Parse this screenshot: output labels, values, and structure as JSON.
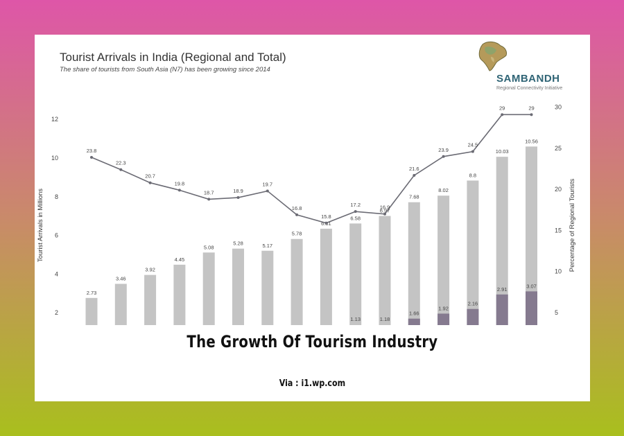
{
  "chart_data": {
    "type": "bar",
    "title": "Tourist Arrivals in India (Regional and Total)",
    "subtitle": "The share of tourists from South Asia (N7) has been growing since 2014",
    "ylabel": "Tourist Arrivals in Millions",
    "y2label": "Percentage of Regional Tourists",
    "ylim": [
      0,
      13
    ],
    "y2lim": [
      0,
      32
    ],
    "yticks": [
      "2",
      "4",
      "6",
      "8",
      "10",
      "12"
    ],
    "y2ticks": [
      "5",
      "10",
      "15",
      "20",
      "25",
      "30"
    ],
    "series": [
      {
        "name": "Total",
        "type": "bar",
        "color": "#c4c4c4",
        "values": [
          2.73,
          3.46,
          3.92,
          4.45,
          5.08,
          5.28,
          5.17,
          5.78,
          6.31,
          6.58,
          6.97,
          7.68,
          8.02,
          8.8,
          10.03,
          10.56
        ],
        "labels": [
          "2.73",
          "3.46",
          "3.92",
          "4.45",
          "5.08",
          "5.28",
          "5.17",
          "5.78",
          "6.31",
          "6.58",
          "6.97",
          "7.68",
          "8.02",
          "8.8",
          "10.03",
          "10.56"
        ]
      },
      {
        "name": "Regional",
        "type": "bar",
        "color": "#857a8f",
        "values": [
          0.6,
          0.65,
          0.72,
          0.8,
          0.95,
          1.0,
          1.02,
          0.97,
          1.0,
          1.13,
          1.18,
          1.66,
          1.92,
          2.16,
          2.91,
          3.07
        ],
        "labels": [
          "",
          "",
          "",
          "",
          "",
          "",
          "",
          "",
          "",
          "1.13",
          "1.18",
          "1.66",
          "1.92",
          "2.16",
          "2.91",
          "3.07"
        ]
      },
      {
        "name": "Regional share",
        "type": "line",
        "axis": "right",
        "color": "#6b6b74",
        "values": [
          23.8,
          22.3,
          20.7,
          19.8,
          18.7,
          18.9,
          19.7,
          16.8,
          15.8,
          17.2,
          16.9,
          21.6,
          23.9,
          24.5,
          29,
          29
        ],
        "labels": [
          "23.8",
          "22.3",
          "20.7",
          "19.8",
          "18.7",
          "18.9",
          "19.7",
          "16.8",
          "15.8",
          "17.2",
          "16.9",
          "21.6",
          "23.9",
          "24.5",
          "29",
          "29"
        ]
      }
    ]
  },
  "logo": {
    "name": "SAMBANDH",
    "tagline": "Regional Connectivity Initiative"
  },
  "caption": {
    "title": "The Growth Of Tourism Industry",
    "via": "Via : i1.wp.com"
  }
}
